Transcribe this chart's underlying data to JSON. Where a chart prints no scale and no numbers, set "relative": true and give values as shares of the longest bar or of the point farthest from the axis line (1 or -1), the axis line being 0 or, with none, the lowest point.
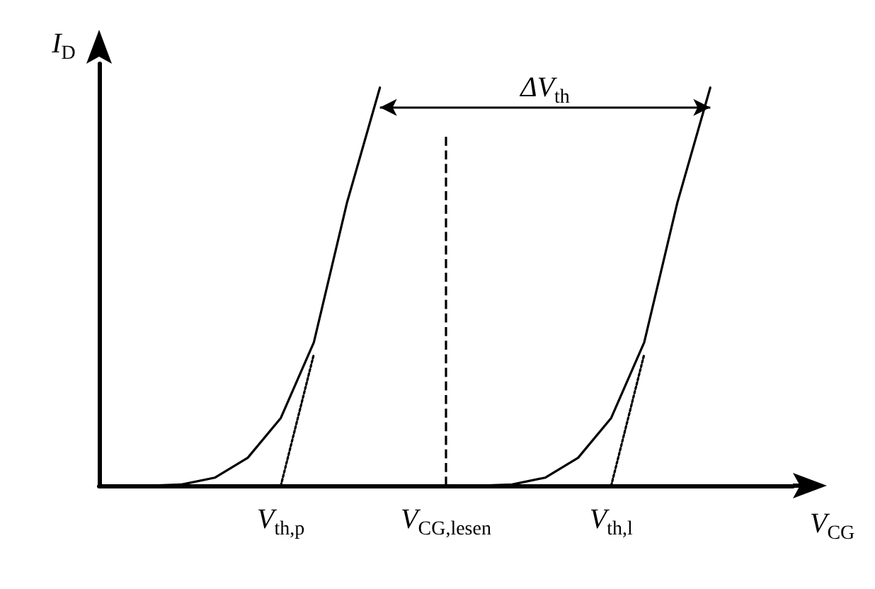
{
  "chart_data": {
    "type": "line",
    "relative": true,
    "xlabel": "V$_{CG}$",
    "ylabel": "I$_{D}$",
    "categories": [
      null,
      null,
      null,
      null,
      null,
      "V$_{th,p}$",
      null,
      null,
      null,
      null,
      "V$_{CG,lesen}$",
      null,
      null,
      null,
      null,
      "V$_{th,l}$",
      null,
      null,
      null,
      null,
      null
    ],
    "series": [
      {
        "color": "#000000",
        "line_style": "solid",
        "values": [
          0,
          0,
          0.003,
          0.02,
          0.07,
          0.17,
          0.36,
          0.71,
          1,
          null,
          null,
          null,
          null,
          null,
          null,
          null,
          null,
          null,
          null,
          null,
          null
        ]
      },
      {
        "color": "#000000",
        "line_style": "solid",
        "values": [
          null,
          null,
          null,
          null,
          null,
          null,
          null,
          null,
          null,
          null,
          0,
          0,
          0.003,
          0.02,
          0.07,
          0.17,
          0.36,
          0.71,
          1,
          null,
          null
        ]
      },
      {
        "color": "#000000",
        "line_style": "dotted",
        "values": [
          null,
          null,
          null,
          null,
          null,
          0,
          0.33,
          null,
          null,
          null,
          null,
          null,
          null,
          null,
          null,
          null,
          null,
          null,
          null,
          null,
          null
        ]
      },
      {
        "color": "#000000",
        "line_style": "dotted",
        "values": [
          null,
          null,
          null,
          null,
          null,
          null,
          null,
          null,
          null,
          null,
          null,
          null,
          null,
          null,
          null,
          0,
          0.33,
          null,
          null,
          null,
          null
        ]
      }
    ],
    "ref_lines": [
      {
        "axis": "x",
        "value": "V$_{CG,lesen}$",
        "line_style": "dashed",
        "color": "#000000"
      }
    ],
    "annotations": [
      "ΔV$_{th}$"
    ],
    "marker": "none",
    "grid": false
  }
}
